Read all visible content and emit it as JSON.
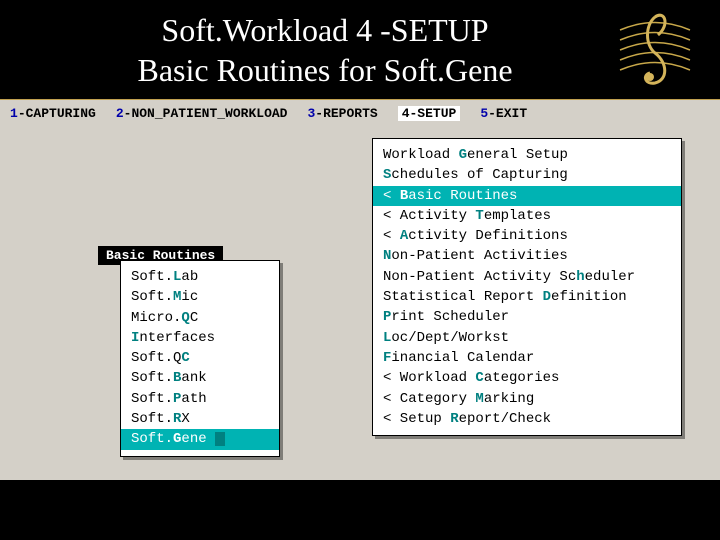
{
  "header": {
    "title1": "Soft.Workload 4 -SETUP",
    "title2": "Basic Routines for Soft.Gene"
  },
  "menubar": {
    "items": [
      {
        "num": "1",
        "label": "-CAPTURING",
        "active": false
      },
      {
        "num": "2",
        "label": "-NON_PATIENT_WORKLOAD",
        "active": false
      },
      {
        "num": "3",
        "label": "-REPORTS",
        "active": false
      },
      {
        "num": "4",
        "label": "-SETUP",
        "active": true
      },
      {
        "num": "5",
        "label": "-EXIT",
        "active": false
      }
    ]
  },
  "rightPanel": {
    "items": [
      {
        "pre": "Workload ",
        "hot": "G",
        "post": "eneral Setup",
        "selected": false
      },
      {
        "pre": "",
        "hot": "S",
        "post": "chedules of Capturing",
        "selected": false
      },
      {
        "pre": "< ",
        "hot": "B",
        "post": "asic Routines",
        "selected": true
      },
      {
        "pre": "< Activity ",
        "hot": "T",
        "post": "emplates",
        "selected": false
      },
      {
        "pre": "< ",
        "hot": "A",
        "post": "ctivity Definitions",
        "selected": false
      },
      {
        "pre": "",
        "hot": "N",
        "post": "on-Patient Activities",
        "selected": false
      },
      {
        "pre": "Non-Patient Activity Sc",
        "hot": "h",
        "post": "eduler",
        "selected": false
      },
      {
        "pre": "Statistical Report ",
        "hot": "D",
        "post": "efinition",
        "selected": false
      },
      {
        "pre": "",
        "hot": "P",
        "post": "rint Scheduler",
        "selected": false
      },
      {
        "pre": "",
        "hot": "L",
        "post": "oc/Dept/Workst",
        "selected": false
      },
      {
        "pre": "",
        "hot": "F",
        "post": "inancial Calendar",
        "selected": false
      },
      {
        "pre": "< Workload ",
        "hot": "C",
        "post": "ategories",
        "selected": false
      },
      {
        "pre": "< Category ",
        "hot": "M",
        "post": "arking",
        "selected": false
      },
      {
        "pre": "< Setup ",
        "hot": "R",
        "post": "eport/Check",
        "selected": false
      }
    ]
  },
  "leftPanel": {
    "title": "Basic Routines",
    "items": [
      {
        "pre": "Soft.",
        "hot": "L",
        "post": "ab",
        "selected": false
      },
      {
        "pre": "Soft.",
        "hot": "M",
        "post": "ic",
        "selected": false
      },
      {
        "pre": "Micro.",
        "hot": "Q",
        "post": "C",
        "selected": false
      },
      {
        "pre": "",
        "hot": "I",
        "post": "nterfaces",
        "selected": false
      },
      {
        "pre": "Soft.Q",
        "hot": "C",
        "post": "",
        "selected": false
      },
      {
        "pre": "Soft.",
        "hot": "B",
        "post": "ank",
        "selected": false
      },
      {
        "pre": "Soft.",
        "hot": "P",
        "post": "ath",
        "selected": false
      },
      {
        "pre": "Soft.",
        "hot": "R",
        "post": "X",
        "selected": false
      },
      {
        "pre": "Soft.",
        "hot": "G",
        "post": "ene",
        "selected": true
      }
    ]
  },
  "colors": {
    "terminalBg": "#d4d0c8",
    "highlight": "#00b3b3",
    "hotkey": "#008080",
    "menuNum": "#0000aa"
  }
}
